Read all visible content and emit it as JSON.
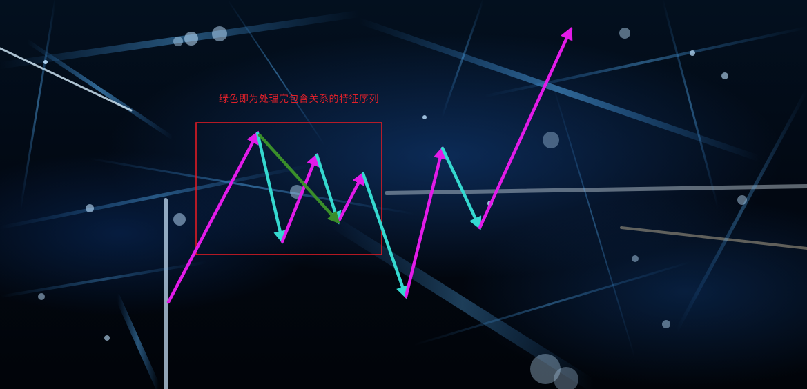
{
  "caption": "绿色即为处理完包含关系的特征序列",
  "colors": {
    "up_stroke": "#e21be8",
    "down_stroke": "#35d8cf",
    "feature_sequence": "#3a8e2a",
    "highlight_box": "#e01b24",
    "caption_text": "#e0202a",
    "background": "#02060e"
  },
  "icons": [
    "arrow-up-icon",
    "arrow-down-icon"
  ]
}
